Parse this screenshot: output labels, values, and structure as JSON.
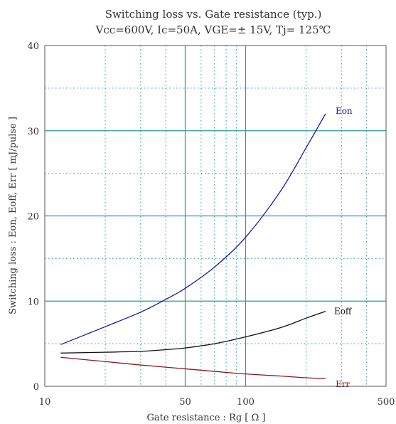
{
  "chart_data": {
    "type": "line",
    "title": "Switching loss vs. Gate resistance (typ.)",
    "subtitle": "Vcc=600V, Ic=50A, VGE=± 15V, Tj= 125℃",
    "xlabel": "Gate resistance : Rg [ Ω ]",
    "ylabel": "Switching loss : Eon, Eoff, Err [ mJ/pulse ]",
    "x_scale": "log",
    "xlim": [
      10,
      500
    ],
    "ylim": [
      0,
      40
    ],
    "x_ticks": [
      10,
      50,
      100,
      500
    ],
    "y_ticks": [
      0,
      10,
      20,
      30,
      40
    ],
    "x_minor_grid": [
      20,
      30,
      40,
      60,
      70,
      80,
      90,
      200,
      300,
      400
    ],
    "y_minor_grid": [
      5,
      15,
      25,
      35
    ],
    "grid": true,
    "colors": {
      "major_grid": "#2e9a9a",
      "minor_grid": "#4aa8b8",
      "axes": "#555555",
      "text": "#333333"
    },
    "series": [
      {
        "name": "Eon",
        "color": "#1a1aa0",
        "x": [
          12,
          20,
          30,
          40,
          50,
          70,
          100,
          150,
          200,
          250
        ],
        "y": [
          4.9,
          7.0,
          8.7,
          10.2,
          11.5,
          14.0,
          17.5,
          23.0,
          28.0,
          32.0
        ]
      },
      {
        "name": "Eoff",
        "color": "#111111",
        "x": [
          12,
          20,
          30,
          40,
          50,
          70,
          100,
          150,
          200,
          250
        ],
        "y": [
          3.9,
          4.0,
          4.1,
          4.3,
          4.5,
          5.0,
          5.8,
          6.9,
          8.0,
          8.8
        ]
      },
      {
        "name": "Err",
        "color": "#8a1a1a",
        "x": [
          12,
          20,
          30,
          50,
          70,
          100,
          150,
          200,
          250
        ],
        "y": [
          3.4,
          2.9,
          2.5,
          2.05,
          1.75,
          1.45,
          1.2,
          1.0,
          0.9
        ]
      }
    ]
  }
}
